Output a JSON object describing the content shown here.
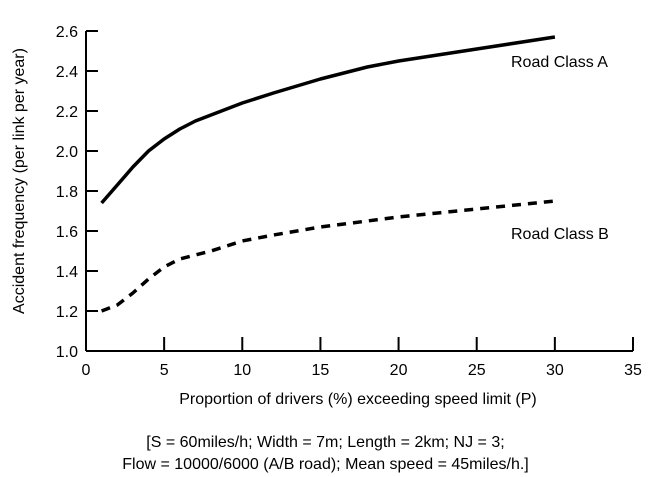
{
  "chart_data": {
    "type": "line",
    "xlabel": "Proportion of drivers (%) exceeding speed limit (P)",
    "ylabel": "Accident frequency (per link per year)",
    "xlim": [
      0,
      35
    ],
    "ylim": [
      1.0,
      2.6
    ],
    "xticks": [
      0,
      5,
      10,
      15,
      20,
      25,
      30,
      35
    ],
    "yticks": [
      1.0,
      1.2,
      1.4,
      1.6,
      1.8,
      2.0,
      2.2,
      2.4,
      2.6
    ],
    "ytick_labels": [
      "1.0",
      "1.2",
      "1.4",
      "1.6",
      "1.8",
      "2.0",
      "2.2",
      "2.4",
      "2.6"
    ],
    "grid": false,
    "series": [
      {
        "name": "Road Class A",
        "style": "solid",
        "x": [
          1,
          2,
          3,
          4,
          5,
          6,
          7,
          8,
          10,
          12,
          15,
          18,
          20,
          25,
          30
        ],
        "y": [
          1.74,
          1.83,
          1.92,
          2.0,
          2.06,
          2.11,
          2.15,
          2.18,
          2.24,
          2.29,
          2.36,
          2.42,
          2.45,
          2.51,
          2.57
        ]
      },
      {
        "name": "Road Class B",
        "style": "dashed",
        "x": [
          1,
          2,
          3,
          4,
          5,
          6,
          8,
          10,
          12,
          15,
          20,
          25,
          30
        ],
        "y": [
          1.2,
          1.23,
          1.29,
          1.36,
          1.42,
          1.46,
          1.5,
          1.55,
          1.58,
          1.62,
          1.67,
          1.71,
          1.75
        ]
      }
    ],
    "caption_lines": [
      "[S = 60miles/h; Width = 7m; Length = 2km; NJ = 3;",
      "Flow = 10000/6000 (A/B road); Mean speed = 45miles/h.]"
    ],
    "colors": {
      "line": "#000000",
      "axis": "#000000"
    }
  }
}
